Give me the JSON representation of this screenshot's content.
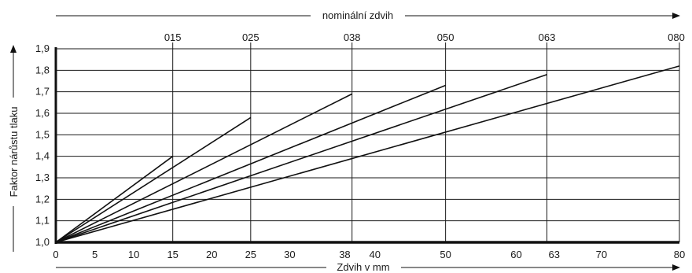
{
  "chart_data": {
    "type": "line",
    "title": "",
    "top_axis_label": "nominální zdvih",
    "xlabel": "Zdvih v mm",
    "ylabel": "Faktor nárůstu tlaku",
    "xlim": [
      0,
      80
    ],
    "ylim": [
      1.0,
      1.9
    ],
    "x_ticks": [
      0,
      5,
      10,
      15,
      20,
      25,
      30,
      38,
      40,
      50,
      60,
      63,
      70,
      80
    ],
    "y_ticks": [
      1.0,
      1.1,
      1.2,
      1.3,
      1.4,
      1.5,
      1.6,
      1.7,
      1.8,
      1.9
    ],
    "y_tick_labels": [
      "1,0",
      "1,1",
      "1,2",
      "1,3",
      "1,4",
      "1,5",
      "1,6",
      "1,7",
      "1,8",
      "1,9"
    ],
    "x_gridlines": [
      15,
      25,
      38,
      50,
      63,
      80
    ],
    "grid": true,
    "series": [
      {
        "label": "015",
        "x": [
          0,
          15
        ],
        "y": [
          1.0,
          1.4
        ]
      },
      {
        "label": "025",
        "x": [
          0,
          25
        ],
        "y": [
          1.0,
          1.58
        ]
      },
      {
        "label": "038",
        "x": [
          0,
          38
        ],
        "y": [
          1.0,
          1.69
        ]
      },
      {
        "label": "050",
        "x": [
          0,
          50
        ],
        "y": [
          1.0,
          1.73
        ]
      },
      {
        "label": "063",
        "x": [
          0,
          63
        ],
        "y": [
          1.0,
          1.78
        ]
      },
      {
        "label": "080",
        "x": [
          0,
          80
        ],
        "y": [
          1.0,
          1.82
        ]
      }
    ],
    "colors": {
      "line": "#111111",
      "grid": "#1a1a1a",
      "background": "#ffffff"
    }
  }
}
